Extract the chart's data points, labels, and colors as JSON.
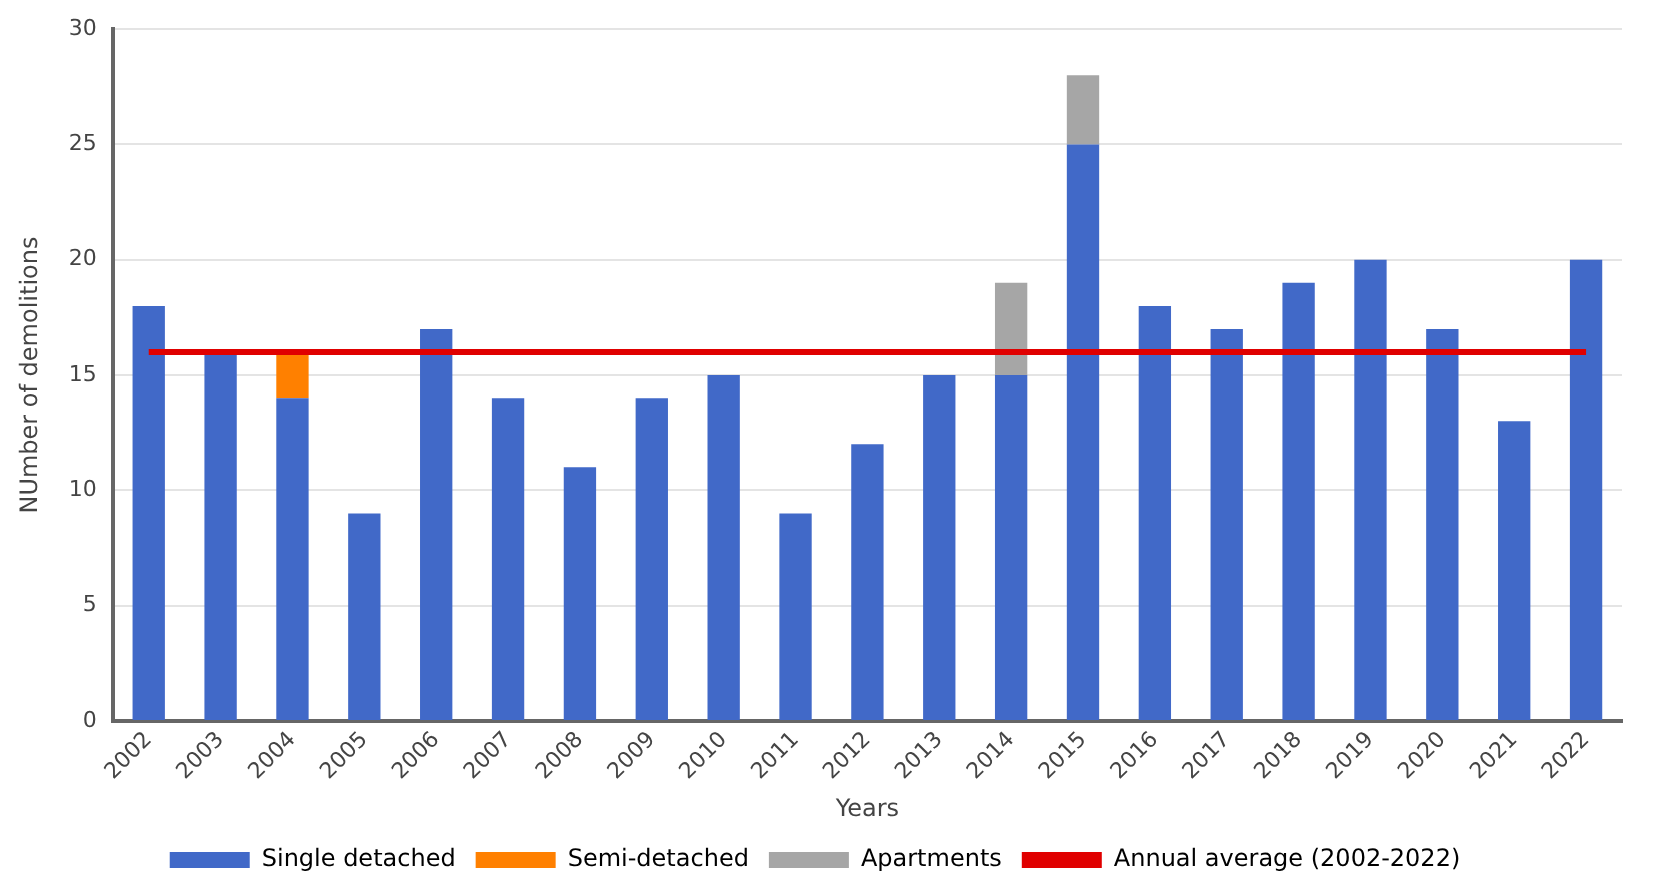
{
  "chart_data": {
    "type": "bar",
    "stacked": true,
    "xlabel": "Years",
    "ylabel": "NUmber of demolitions",
    "categories": [
      "2002",
      "2003",
      "2004",
      "2005",
      "2006",
      "2007",
      "2008",
      "2009",
      "2010",
      "2011",
      "2012",
      "2013",
      "2014",
      "2015",
      "2016",
      "2017",
      "2018",
      "2019",
      "2020",
      "2021",
      "2022"
    ],
    "series": [
      {
        "name": "Single detached",
        "color": "#4169c8",
        "values": [
          18,
          16,
          14,
          9,
          17,
          14,
          11,
          14,
          15,
          9,
          12,
          15,
          15,
          25,
          18,
          17,
          19,
          20,
          17,
          13,
          20
        ]
      },
      {
        "name": "Semi-detached",
        "color": "#ff8000",
        "values": [
          0,
          0,
          2,
          0,
          0,
          0,
          0,
          0,
          0,
          0,
          0,
          0,
          0,
          0,
          0,
          0,
          0,
          0,
          0,
          0,
          0
        ]
      },
      {
        "name": "Apartments",
        "color": "#a6a6a6",
        "values": [
          0,
          0,
          0,
          0,
          0,
          0,
          0,
          0,
          0,
          0,
          0,
          0,
          4,
          3,
          0,
          0,
          0,
          0,
          0,
          0,
          0
        ]
      },
      {
        "name": "Annual average (2002-2022)",
        "type": "line",
        "color": "#e00000",
        "values": [
          16,
          16,
          16,
          16,
          16,
          16,
          16,
          16,
          16,
          16,
          16,
          16,
          16,
          16,
          16,
          16,
          16,
          16,
          16,
          16,
          16
        ]
      }
    ],
    "ylim": [
      0,
      30
    ],
    "yticks": [
      0,
      5,
      10,
      15,
      20,
      25,
      30
    ],
    "grid": "y",
    "legend": "bottom"
  }
}
